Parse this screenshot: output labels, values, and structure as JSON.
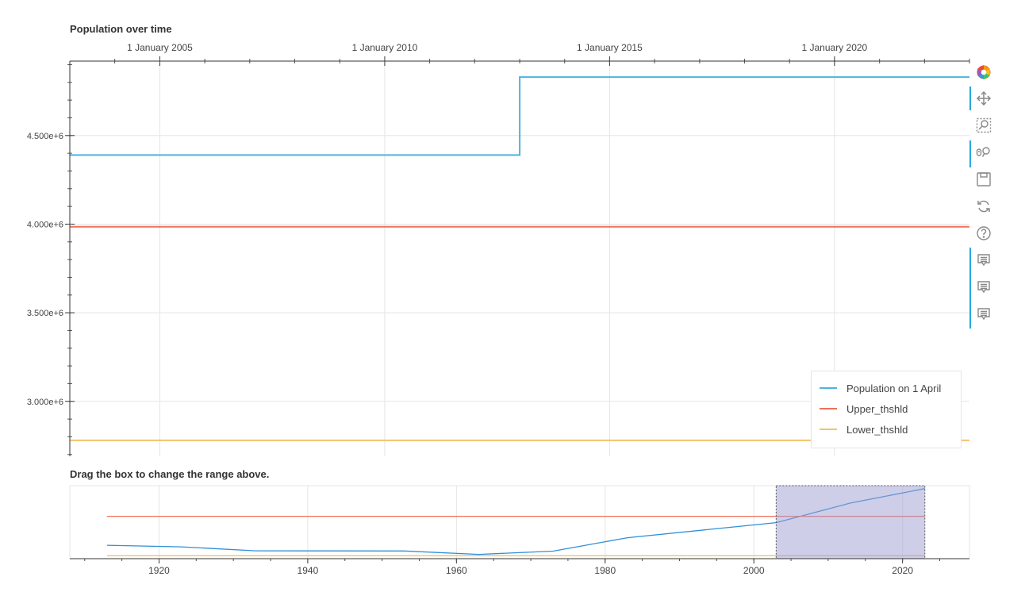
{
  "chart_data": [
    {
      "type": "line",
      "title": "Population over time",
      "x_axis": "datetime",
      "x_ticks": [
        "1 January 2005",
        "1 January 2010",
        "1 January 2015",
        "1 January 2020"
      ],
      "x_tick_values": [
        "2005-01-01",
        "2010-01-01",
        "2015-01-01",
        "2020-01-01"
      ],
      "xlim": [
        "2003-01-01",
        "2023-01-01"
      ],
      "y_ticks": [
        "3.000e+6",
        "3.500e+6",
        "4.000e+6",
        "4.500e+6"
      ],
      "y_tick_values": [
        3000000,
        3500000,
        4000000,
        4500000
      ],
      "ylim": [
        2690000,
        4920000
      ],
      "grid": true,
      "legend_position": "bottom-right",
      "series": [
        {
          "name": "Population on 1 April",
          "color": "#4fb3e0",
          "step": true,
          "points": [
            [
              "2003-01-01",
              4390000
            ],
            [
              "2013-01-01",
              4390000
            ],
            [
              "2013-01-01",
              4830000
            ],
            [
              "2023-01-01",
              4830000
            ]
          ]
        },
        {
          "name": "Upper_thshld",
          "color": "#f0705a",
          "points": [
            [
              "2003-01-01",
              3985000
            ],
            [
              "2023-01-01",
              3985000
            ]
          ]
        },
        {
          "name": "Lower_thshld",
          "color": "#f2c36b",
          "points": [
            [
              "2003-01-01",
              2780000
            ],
            [
              "2023-01-01",
              2780000
            ]
          ]
        }
      ]
    },
    {
      "type": "line",
      "title": "Drag the box to change the range above.",
      "x_ticks": [
        "1920",
        "1940",
        "1960",
        "1980",
        "2000",
        "2020"
      ],
      "x_tick_values": [
        1920,
        1940,
        1960,
        1980,
        2000,
        2020
      ],
      "xlim": [
        1908,
        2029
      ],
      "ylim": [
        2690000,
        4920000
      ],
      "grid": true,
      "range_selection": [
        2003,
        2023
      ],
      "series": [
        {
          "name": "Population on 1 April",
          "color": "#2e8fd8",
          "points": [
            [
              1913,
              3100000
            ],
            [
              1923,
              3050000
            ],
            [
              1933,
              2930000
            ],
            [
              1953,
              2925000
            ],
            [
              1963,
              2820000
            ],
            [
              1973,
              2920000
            ],
            [
              1983,
              3330000
            ],
            [
              2003,
              3790000
            ],
            [
              2013,
              4390000
            ],
            [
              2023,
              4830000
            ]
          ]
        },
        {
          "name": "Upper_thshld",
          "color": "#f0705a",
          "points": [
            [
              1913,
              3985000
            ],
            [
              2023,
              3985000
            ]
          ]
        },
        {
          "name": "Lower_thshld",
          "color": "#f2c36b",
          "points": [
            [
              1913,
              2780000
            ],
            [
              2023,
              2780000
            ]
          ]
        }
      ]
    }
  ],
  "toolbar": {
    "tools": [
      {
        "name": "bokeh-logo-icon",
        "active": false,
        "interactable": false
      },
      {
        "name": "pan-icon",
        "active": true,
        "interactable": true
      },
      {
        "name": "box-zoom-icon",
        "active": false,
        "interactable": true
      },
      {
        "name": "wheel-zoom-icon",
        "active": true,
        "interactable": true
      },
      {
        "name": "save-icon",
        "active": false,
        "interactable": true
      },
      {
        "name": "reset-icon",
        "active": false,
        "interactable": true
      },
      {
        "name": "help-icon",
        "active": false,
        "interactable": true
      },
      {
        "name": "hover-icon",
        "active": true,
        "interactable": true
      },
      {
        "name": "hover-icon",
        "active": true,
        "interactable": true
      },
      {
        "name": "hover-icon",
        "active": true,
        "interactable": true
      }
    ]
  }
}
